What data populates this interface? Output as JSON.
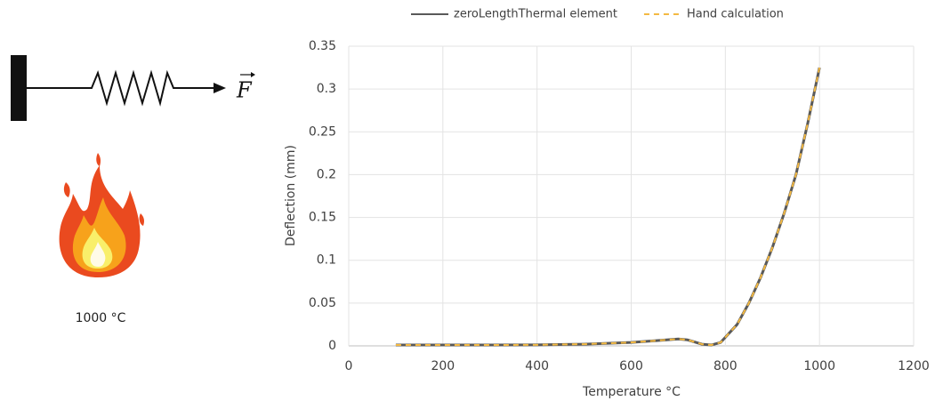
{
  "diagram": {
    "force_label": "F",
    "temperature": "1000 °C"
  },
  "chart_data": {
    "type": "line",
    "x_label": "Temperature °C",
    "y_label": "Deflection (mm)",
    "x": [
      100,
      200,
      300,
      400,
      500,
      600,
      650,
      700,
      720,
      750,
      770,
      790,
      800,
      825,
      850,
      875,
      900,
      925,
      950,
      975,
      1000
    ],
    "series": [
      {
        "name": "zeroLengthThermal element",
        "color": "#595959",
        "dashed": false,
        "values": [
          0.001,
          0.001,
          0.001,
          0.0012,
          0.002,
          0.004,
          0.006,
          0.008,
          0.007,
          0.002,
          0.001,
          0.004,
          0.01,
          0.025,
          0.05,
          0.08,
          0.115,
          0.155,
          0.2,
          0.26,
          0.325
        ]
      },
      {
        "name": "Hand calculation",
        "color": "#f4b942",
        "dashed": true,
        "values": [
          0.001,
          0.001,
          0.001,
          0.0012,
          0.002,
          0.004,
          0.006,
          0.008,
          0.007,
          0.002,
          0.001,
          0.004,
          0.01,
          0.025,
          0.05,
          0.08,
          0.115,
          0.155,
          0.2,
          0.26,
          0.325
        ]
      }
    ],
    "xlim": [
      0,
      1200
    ],
    "xticks": [
      0,
      200,
      400,
      600,
      800,
      1000,
      1200
    ],
    "ylim": [
      0,
      0.35
    ],
    "yticks": [
      0,
      0.05,
      0.1,
      0.15,
      0.2,
      0.25,
      0.3,
      0.35
    ],
    "grid": true,
    "legend": "top"
  }
}
